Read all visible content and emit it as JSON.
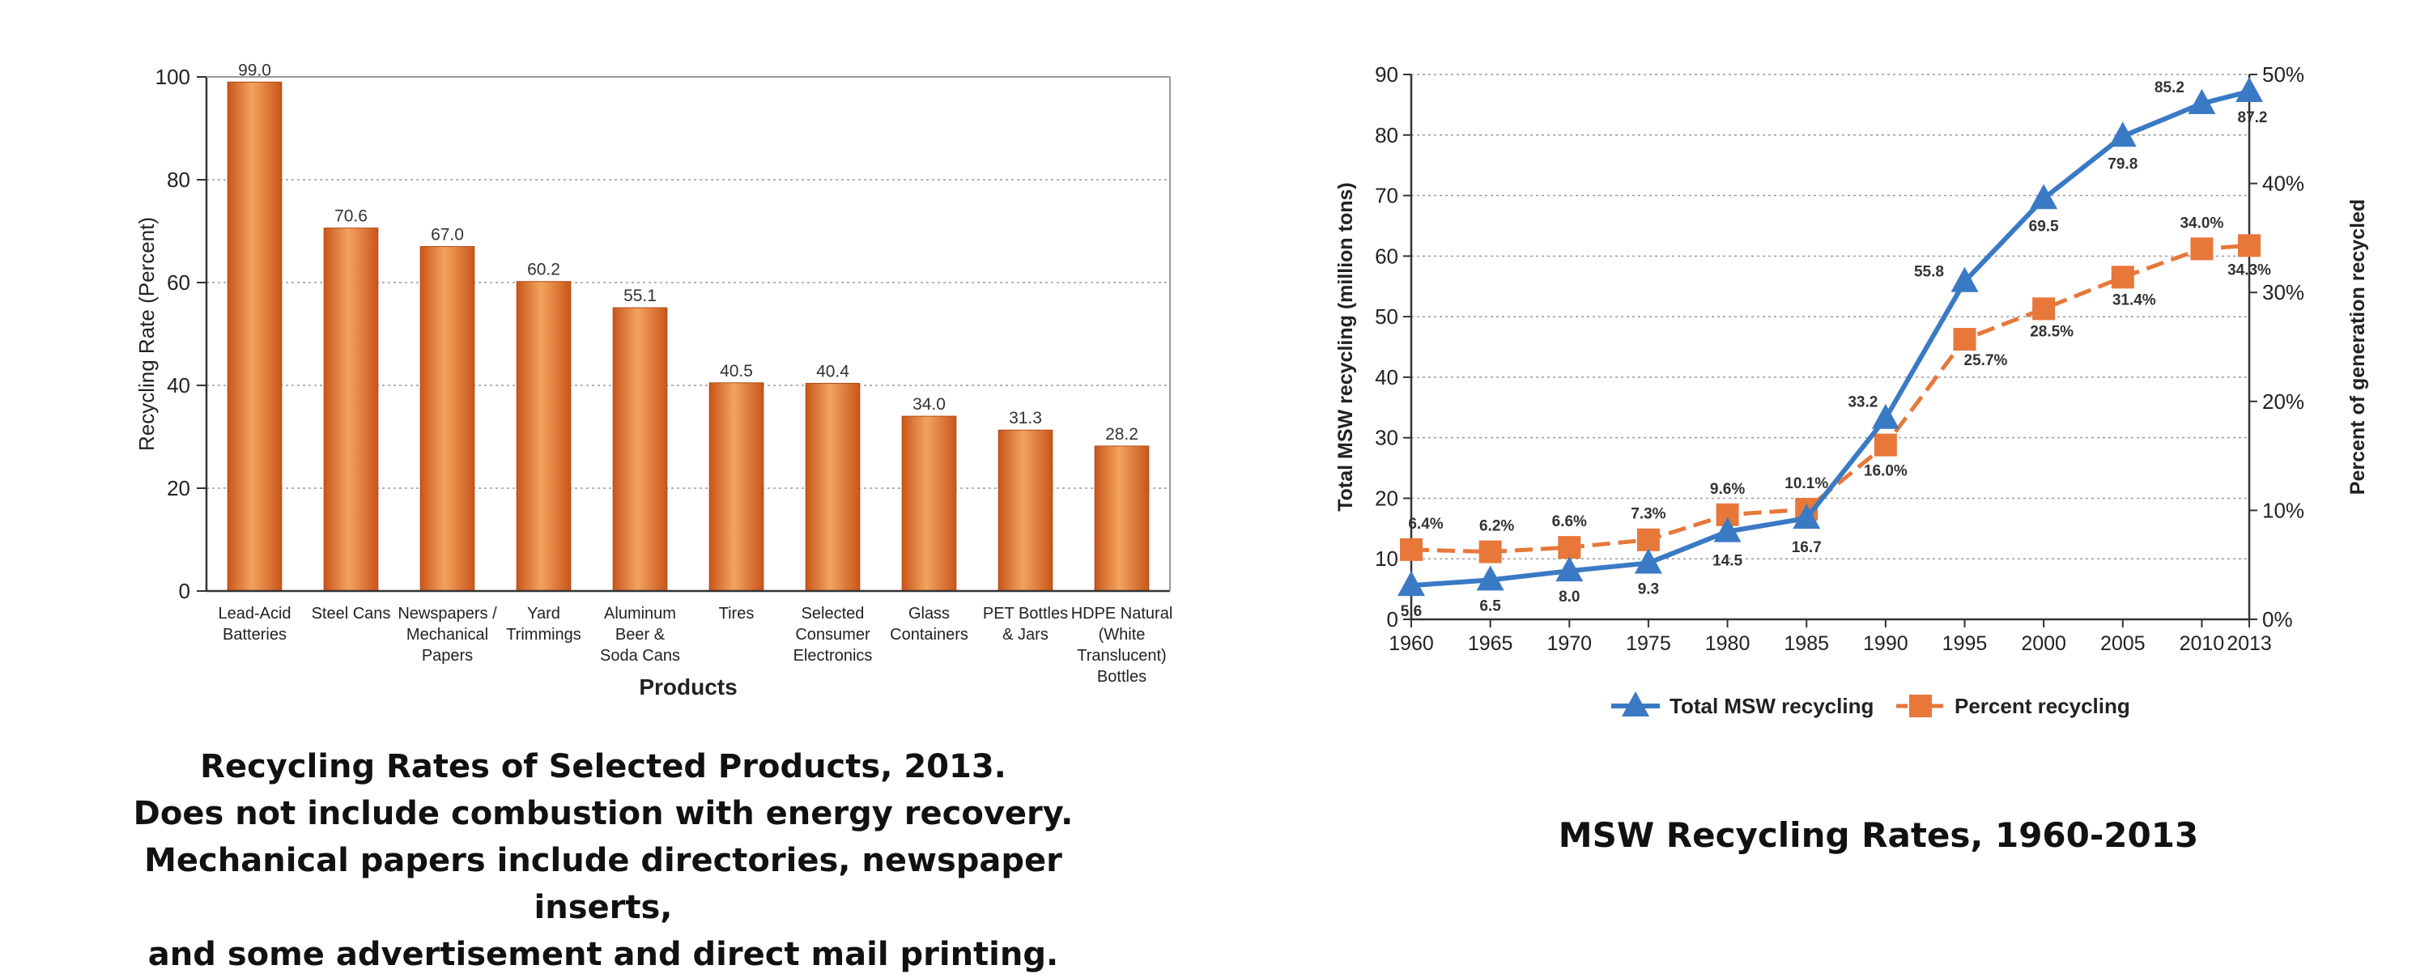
{
  "charts": {
    "left_caption": [
      "Recycling Rates of Selected Products, 2013.",
      "Does not include combustion with energy recovery.",
      "Mechanical papers include directories, newspaper inserts,",
      "and some advertisement and direct mail printing."
    ],
    "right_caption": "MSW Recycling Rates, 1960-2013"
  },
  "chart_data": [
    {
      "type": "bar",
      "title": "Recycling Rates of Selected Products, 2013.",
      "xlabel": "Products",
      "ylabel": "Recycling  Rate (Percent)",
      "ylim": [
        0,
        100
      ],
      "yticks": [
        0,
        20,
        40,
        60,
        80,
        100
      ],
      "grid": true,
      "color": "#e8873f",
      "categories": [
        [
          "Lead-Acid",
          "Batteries"
        ],
        [
          "Steel Cans"
        ],
        [
          "Newspapers /",
          "Mechanical",
          "Papers"
        ],
        [
          "Yard",
          "Trimmings"
        ],
        [
          "Aluminum",
          "Beer &",
          "Soda Cans"
        ],
        [
          "Tires"
        ],
        [
          "Selected",
          "Consumer",
          "Electronics"
        ],
        [
          "Glass",
          "Containers"
        ],
        [
          "PET Bottles",
          "& Jars"
        ],
        [
          "HDPE Natural",
          "(White",
          "Translucent)",
          "Bottles"
        ]
      ],
      "values": [
        99.0,
        70.6,
        67.0,
        60.2,
        55.1,
        40.5,
        40.4,
        34.0,
        31.3,
        28.2
      ],
      "value_labels": [
        "99.0",
        "70.6",
        "67.0",
        "60.2",
        "55.1",
        "40.5",
        "40.4",
        "34.0",
        "31.3",
        "28.2"
      ]
    },
    {
      "type": "line",
      "title": "MSW Recycling Rates, 1960-2013",
      "xlabel": "",
      "ylabel": "Total MSW recycling (million tons)",
      "y2label": "Percent of generation recycled",
      "x": [
        1960,
        1965,
        1970,
        1975,
        1980,
        1985,
        1990,
        1995,
        2000,
        2005,
        2010,
        2013
      ],
      "xticks": [
        "1960",
        "1965",
        "1970",
        "1975",
        "1980",
        "1985",
        "1990",
        "1995",
        "2000",
        "2005",
        "2010",
        "2013"
      ],
      "ylim": [
        0,
        90
      ],
      "yticks": [
        0,
        10,
        20,
        30,
        40,
        50,
        60,
        70,
        80,
        90
      ],
      "y2lim": [
        0,
        50
      ],
      "y2ticks": [
        "0%",
        "10%",
        "20%",
        "30%",
        "40%",
        "50%"
      ],
      "grid": true,
      "legend_position": "bottom",
      "series": [
        {
          "name": "Total MSW recycling",
          "axis": "left",
          "color": "#3a7ac4",
          "marker": "triangle",
          "line": "solid",
          "values": [
            5.6,
            6.5,
            8.0,
            9.3,
            14.5,
            16.7,
            33.2,
            55.8,
            69.5,
            79.8,
            85.2,
            87.2
          ],
          "labels": [
            "5.6",
            "6.5",
            "8.0",
            "9.3",
            "14.5",
            "16.7",
            "33.2",
            "55.8",
            "69.5",
            "79.8",
            "85.2",
            "87.2"
          ]
        },
        {
          "name": "Percent recycling",
          "axis": "right",
          "color": "#e8773a",
          "marker": "square",
          "line": "dashed",
          "values": [
            6.4,
            6.2,
            6.6,
            7.3,
            9.6,
            10.1,
            16.0,
            25.7,
            28.5,
            31.4,
            34.0,
            34.3
          ],
          "labels": [
            "6.4%",
            "6.2%",
            "6.6%",
            "7.3%",
            "9.6%",
            "10.1%",
            "16.0%",
            "25.7%",
            "28.5%",
            "31.4%",
            "34.0%",
            "34.3%"
          ]
        }
      ]
    }
  ]
}
